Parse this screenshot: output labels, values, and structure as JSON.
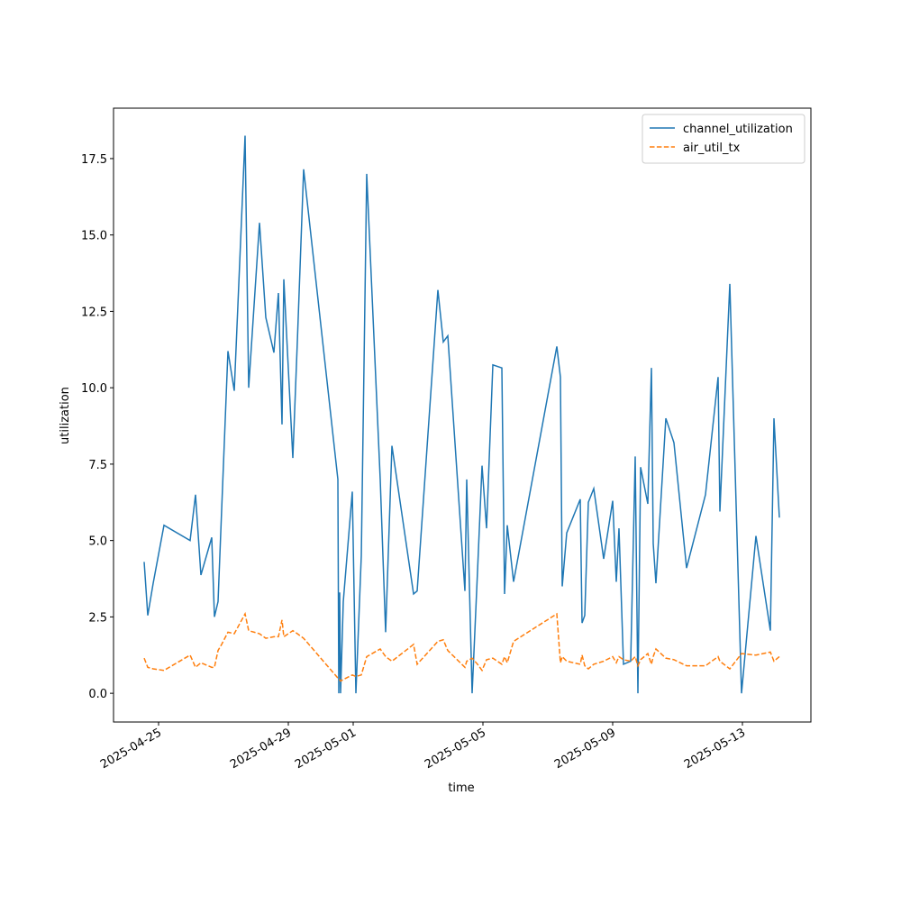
{
  "chart_data": {
    "type": "line",
    "x_label": "time",
    "y_label": "utilization",
    "x": [
      "2025-04-24T13:20",
      "2025-04-24T16:00",
      "2025-04-24T20:00",
      "2025-04-25T04:00",
      "2025-04-25T23:20",
      "2025-04-26T03:20",
      "2025-04-26T07:20",
      "2025-04-26T15:20",
      "2025-04-26T17:20",
      "2025-04-26T20:00",
      "2025-04-26T22:40",
      "2025-04-27T03:20",
      "2025-04-27T08:00",
      "2025-04-27T16:00",
      "2025-04-27T18:40",
      "2025-04-28T02:40",
      "2025-04-28T07:20",
      "2025-04-28T13:20",
      "2025-04-28T16:40",
      "2025-04-28T19:20",
      "2025-04-28T20:40",
      "2025-04-29T03:20",
      "2025-04-29T06:40",
      "2025-04-29T11:20",
      "2025-04-30T12:40",
      "2025-04-30T13:20",
      "2025-04-30T14:00",
      "2025-04-30T14:40",
      "2025-04-30T16:40",
      "2025-04-30T23:20",
      "2025-05-01T02:00",
      "2025-05-01T06:00",
      "2025-05-01T10:00",
      "2025-05-01T20:00",
      "2025-05-02T00:00",
      "2025-05-02T04:40",
      "2025-05-02T20:40",
      "2025-05-02T23:20",
      "2025-05-03T14:40",
      "2025-05-03T18:40",
      "2025-05-03T22:00",
      "2025-05-04T10:40",
      "2025-05-04T12:00",
      "2025-05-04T16:00",
      "2025-05-04T20:00",
      "2025-05-04T23:20",
      "2025-05-05T02:40",
      "2025-05-05T07:20",
      "2025-05-05T14:00",
      "2025-05-05T16:00",
      "2025-05-05T18:00",
      "2025-05-05T22:40",
      "2025-05-07T06:40",
      "2025-05-07T09:20",
      "2025-05-07T10:40",
      "2025-05-07T14:00",
      "2025-05-08T00:00",
      "2025-05-08T01:20",
      "2025-05-08T03:20",
      "2025-05-08T06:00",
      "2025-05-08T10:00",
      "2025-05-08T17:20",
      "2025-05-09T00:00",
      "2025-05-09T02:40",
      "2025-05-09T04:40",
      "2025-05-09T08:00",
      "2025-05-09T13:20",
      "2025-05-09T16:40",
      "2025-05-09T18:40",
      "2025-05-09T20:40",
      "2025-05-10T02:00",
      "2025-05-10T04:40",
      "2025-05-10T06:00",
      "2025-05-10T08:00",
      "2025-05-10T15:20",
      "2025-05-10T21:20",
      "2025-05-11T06:40",
      "2025-05-11T20:40",
      "2025-05-12T06:00",
      "2025-05-12T07:20",
      "2025-05-12T14:40",
      "2025-05-12T23:20",
      "2025-05-13T10:00",
      "2025-05-13T20:40",
      "2025-05-13T23:20",
      "2025-05-14T03:20"
    ],
    "series": [
      {
        "name": "channel_utilization",
        "color": "#1f77b4",
        "dash": false,
        "values": [
          4.3,
          2.55,
          3.6,
          5.5,
          5.0,
          6.5,
          3.87,
          5.1,
          2.5,
          3.0,
          6.0,
          11.2,
          9.9,
          18.25,
          10.0,
          15.4,
          12.3,
          11.15,
          13.1,
          8.8,
          13.55,
          7.7,
          11.5,
          17.15,
          7.0,
          0.0,
          3.3,
          0.0,
          3.0,
          6.6,
          0.0,
          4.5,
          17.0,
          7.0,
          2.0,
          8.1,
          3.25,
          3.35,
          13.2,
          11.5,
          11.7,
          3.35,
          7.0,
          0.0,
          4.0,
          7.45,
          5.4,
          10.75,
          10.65,
          3.25,
          5.5,
          3.65,
          11.35,
          10.35,
          3.5,
          5.25,
          6.35,
          2.3,
          2.55,
          6.25,
          6.7,
          4.4,
          6.3,
          3.65,
          5.4,
          0.95,
          1.05,
          7.75,
          0.0,
          7.4,
          6.2,
          10.65,
          4.9,
          3.6,
          9.0,
          8.2,
          4.1,
          6.5,
          10.35,
          5.95,
          13.4,
          0.0,
          5.15,
          2.05,
          9.0,
          5.75
        ]
      },
      {
        "name": "air_util_tx",
        "color": "#ff7f0e",
        "dash": true,
        "values": [
          1.15,
          0.85,
          0.8,
          0.75,
          1.25,
          0.85,
          1.0,
          0.85,
          0.85,
          1.4,
          1.6,
          2.0,
          1.95,
          2.6,
          2.05,
          1.95,
          1.8,
          1.85,
          1.85,
          2.4,
          1.85,
          2.05,
          1.95,
          1.8,
          0.5,
          0.45,
          0.45,
          0.4,
          0.45,
          0.6,
          0.55,
          0.6,
          1.2,
          1.45,
          1.2,
          1.05,
          1.6,
          0.95,
          1.7,
          1.75,
          1.4,
          0.85,
          1.05,
          1.15,
          0.95,
          0.75,
          1.1,
          1.15,
          0.95,
          1.2,
          1.0,
          1.7,
          2.6,
          1.0,
          1.2,
          1.05,
          0.95,
          1.25,
          0.9,
          0.8,
          0.95,
          1.05,
          1.2,
          1.0,
          1.2,
          1.1,
          1.05,
          1.2,
          0.9,
          1.1,
          1.3,
          0.95,
          1.2,
          1.45,
          1.15,
          1.1,
          0.9,
          0.9,
          1.2,
          1.05,
          0.8,
          1.3,
          1.25,
          1.35,
          1.05,
          1.2
        ]
      }
    ],
    "xlim": [
      "2025-04-23T14:40",
      "2025-05-15T02:40"
    ],
    "xticks": [
      "2025-04-25",
      "2025-04-29",
      "2025-05-01",
      "2025-05-05",
      "2025-05-09",
      "2025-05-13"
    ],
    "ylim": [
      -0.94,
      19.15
    ],
    "yticks": [
      {
        "value": 0,
        "label": "0.0"
      },
      2.5,
      {
        "value": 5,
        "label": "5.0"
      },
      7.5,
      {
        "value": 10,
        "label": "10.0"
      },
      12.5,
      {
        "value": 15,
        "label": "15.0"
      },
      17.5
    ],
    "legend": "upper right",
    "grid": false
  }
}
